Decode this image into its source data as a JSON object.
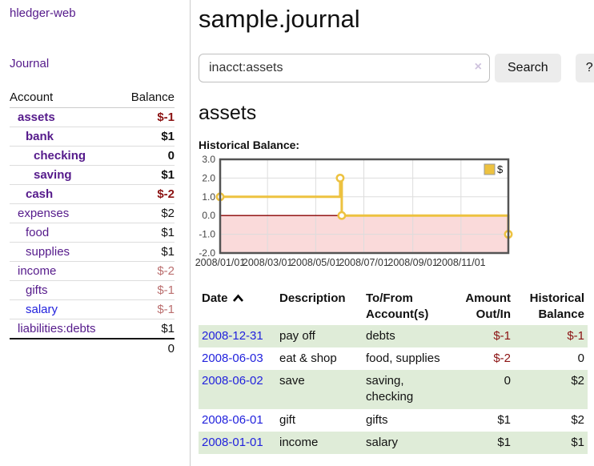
{
  "sidebar": {
    "brand": "hledger-web",
    "nav": [
      {
        "label": "Journal"
      }
    ],
    "accounts_table": {
      "headers": [
        "Account",
        "Balance"
      ],
      "rows": [
        {
          "name": "assets",
          "indent": 1,
          "bold": true,
          "balance": "$-1",
          "balance_class": "neg-strong"
        },
        {
          "name": "bank",
          "indent": 2,
          "bold": true,
          "balance": "$1"
        },
        {
          "name": "checking",
          "indent": 3,
          "bold": true,
          "balance": "0"
        },
        {
          "name": "saving",
          "indent": 3,
          "bold": true,
          "balance": "$1"
        },
        {
          "name": "cash",
          "indent": 2,
          "bold": true,
          "balance": "$-2",
          "balance_class": "neg-strong"
        },
        {
          "name": "expenses",
          "indent": 1,
          "bold": false,
          "balance": "$2"
        },
        {
          "name": "food",
          "indent": 2,
          "bold": false,
          "balance": "$1"
        },
        {
          "name": "supplies",
          "indent": 2,
          "bold": false,
          "balance": "$1"
        },
        {
          "name": "income",
          "indent": 1,
          "bold": false,
          "balance": "$-2",
          "balance_class": "neg-muted"
        },
        {
          "name": "gifts",
          "indent": 2,
          "bold": false,
          "balance": "$-1",
          "balance_class": "neg-muted"
        },
        {
          "name": "salary",
          "indent": 2,
          "bold": false,
          "balance": "$-1",
          "balance_class": "neg-muted",
          "link_class": "link-new"
        },
        {
          "name": "liabilities:debts",
          "indent": 1,
          "bold": false,
          "balance": "$1"
        }
      ],
      "total": "0"
    }
  },
  "main": {
    "title": "sample.journal",
    "search": {
      "value": "inacct:assets",
      "clear_icon": "×",
      "button": "Search",
      "help_button": "?"
    },
    "account_heading": "assets",
    "chart_label": "Historical Balance:",
    "transactions": {
      "headers": [
        {
          "label": "Date",
          "sort": "asc"
        },
        {
          "label": "Description"
        },
        {
          "label": "To/From Account(s)"
        },
        {
          "label": "Amount Out/In",
          "align": "right"
        },
        {
          "label": "Historical Balance",
          "align": "right"
        }
      ],
      "rows": [
        {
          "date": "2008-12-31",
          "description": "pay off",
          "accounts": "debts",
          "amount": "$-1",
          "amount_negative": true,
          "balance": "$-1",
          "balance_negative": true
        },
        {
          "date": "2008-06-03",
          "description": "eat & shop",
          "accounts": "food, supplies",
          "amount": "$-2",
          "amount_negative": true,
          "balance": "0",
          "balance_negative": false
        },
        {
          "date": "2008-06-02",
          "description": "save",
          "accounts": "saving, checking",
          "amount": "0",
          "amount_negative": false,
          "balance": "$2",
          "balance_negative": false
        },
        {
          "date": "2008-06-01",
          "description": "gift",
          "accounts": "gifts",
          "amount": "$1",
          "amount_negative": false,
          "balance": "$2",
          "balance_negative": false
        },
        {
          "date": "2008-01-01",
          "description": "income",
          "accounts": "salary",
          "amount": "$1",
          "amount_negative": false,
          "balance": "$1",
          "balance_negative": false
        }
      ]
    }
  },
  "chart_data": {
    "type": "line",
    "step": true,
    "title": "Historical Balance",
    "series": [
      {
        "name": "$",
        "color": "#edc240",
        "points": [
          [
            "2008-01-01",
            1
          ],
          [
            "2008-06-01",
            2
          ],
          [
            "2008-06-03",
            0
          ],
          [
            "2008-12-31",
            -1
          ]
        ]
      }
    ],
    "x_ticks": [
      "2008/01/01",
      "2008/03/01",
      "2008/05/01",
      "2008/07/01",
      "2008/09/01",
      "2008/11/01"
    ],
    "y_ticks": [
      3.0,
      2.0,
      1.0,
      0.0,
      -1.0,
      -2.0
    ],
    "xlim": [
      "2008-01-01",
      "2008-12-31"
    ],
    "ylim": [
      -2,
      3
    ],
    "grid": true,
    "grid_color": "#dddddd",
    "border_color": "#545454",
    "negative_region_color": "#fadada",
    "zero_line_color": "#8b0000",
    "legend": "$",
    "legend_position": "top-right"
  },
  "colors": {
    "link_visited": "#551a8b",
    "link_new": "#2222dd",
    "negative_strong": "#8b1212",
    "negative_muted": "#bb6f6f",
    "row_stripe_green": "#dfecd8",
    "series_gold": "#edc240"
  }
}
